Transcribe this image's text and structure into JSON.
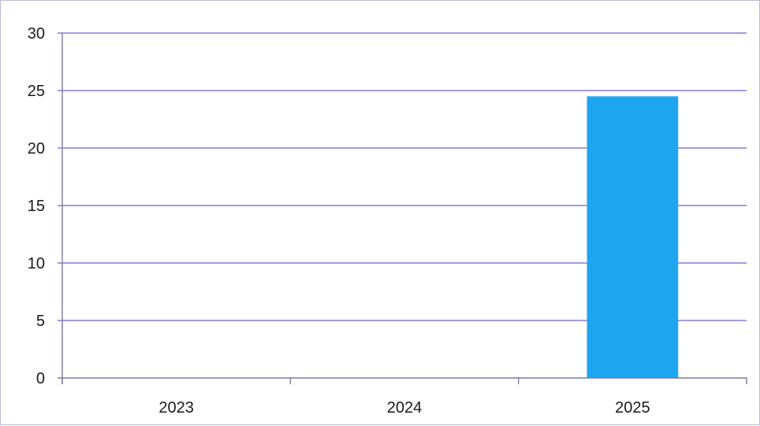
{
  "chart_data": {
    "type": "bar",
    "categories": [
      "2023",
      "2024",
      "2025"
    ],
    "values": [
      0,
      0,
      24.5
    ],
    "title": "",
    "xlabel": "",
    "ylabel": "",
    "ylim": [
      0,
      30
    ],
    "yticks": [
      0,
      5,
      10,
      15,
      20,
      25,
      30
    ],
    "grid": true,
    "legend": "none",
    "colors": {
      "bar": "#1ea5f0",
      "grid": "#8878d8",
      "axis": "#7a7a9a"
    }
  }
}
